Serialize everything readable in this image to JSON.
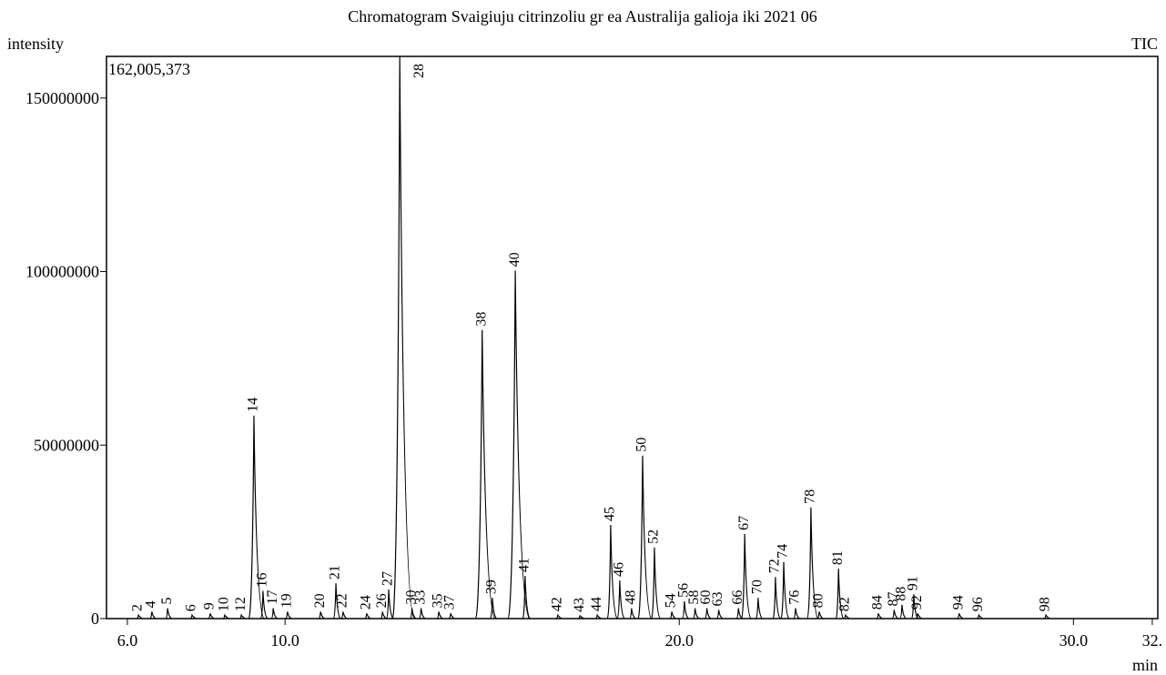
{
  "chart_data": {
    "type": "chromatogram",
    "title": "Chromatogram Svaigiuju citrinzoliu gr ea Australija galioja iki 2021 06",
    "y_label": "intensity",
    "x_label": "min",
    "trace_label": "TIC",
    "max_intensity_label": "162,005,373",
    "xlim": [
      5.47,
      32.14
    ],
    "ylim": [
      0,
      162005373
    ],
    "xticks": [
      {
        "value": 6,
        "label": "6.0"
      },
      {
        "value": 10,
        "label": "10.0"
      },
      {
        "value": 20,
        "label": "20.0"
      },
      {
        "value": 30,
        "label": "30.0"
      },
      {
        "value": 32,
        "label": "32."
      }
    ],
    "yticks": [
      0,
      50000000,
      100000000,
      150000000
    ],
    "color": "#000000",
    "peak_numbers": [
      2,
      4,
      5,
      6,
      9,
      10,
      12,
      14,
      16,
      17,
      19,
      20,
      21,
      22,
      24,
      26,
      27,
      28,
      30,
      33,
      35,
      37,
      38,
      39,
      40,
      41,
      42,
      43,
      44,
      45,
      46,
      48,
      50,
      52,
      54,
      56,
      58,
      60,
      63,
      66,
      67,
      70,
      72,
      74,
      76,
      78,
      80,
      81,
      82,
      84,
      87,
      88,
      91,
      92,
      94,
      96,
      98
    ],
    "x": [
      6.28,
      6.62,
      7.02,
      7.64,
      8.1,
      8.47,
      8.89,
      9.21,
      9.44,
      9.7,
      10.06,
      10.9,
      11.29,
      11.47,
      12.07,
      12.47,
      12.63,
      12.91,
      13.22,
      13.45,
      13.9,
      14.2,
      15.0,
      15.26,
      15.84,
      16.09,
      16.92,
      17.48,
      17.92,
      18.26,
      18.49,
      18.79,
      19.07,
      19.37,
      19.81,
      20.13,
      20.4,
      20.7,
      21.0,
      21.5,
      21.66,
      22.0,
      22.44,
      22.65,
      22.95,
      23.34,
      23.55,
      24.04,
      24.22,
      25.05,
      25.45,
      25.65,
      25.95,
      26.05,
      27.1,
      27.6,
      29.3
    ],
    "values": [
      1000000,
      2000000,
      3000000,
      1000000,
      1500000,
      1000000,
      1000000,
      58500000,
      8000000,
      3000000,
      2000000,
      2000000,
      10200000,
      2000000,
      1500000,
      2000000,
      8400000,
      162005373,
      3000000,
      3000000,
      2000000,
      1500000,
      83200000,
      6000000,
      100300000,
      12300000,
      1000000,
      800000,
      1000000,
      27000000,
      11000000,
      3000000,
      47000000,
      20500000,
      2000000,
      5000000,
      3000000,
      3000000,
      2500000,
      3000000,
      24400000,
      6000000,
      12000000,
      16300000,
      3000000,
      32000000,
      2000000,
      14400000,
      1000000,
      1500000,
      2500000,
      4000000,
      7000000,
      1500000,
      1500000,
      1000000,
      1000000
    ]
  }
}
